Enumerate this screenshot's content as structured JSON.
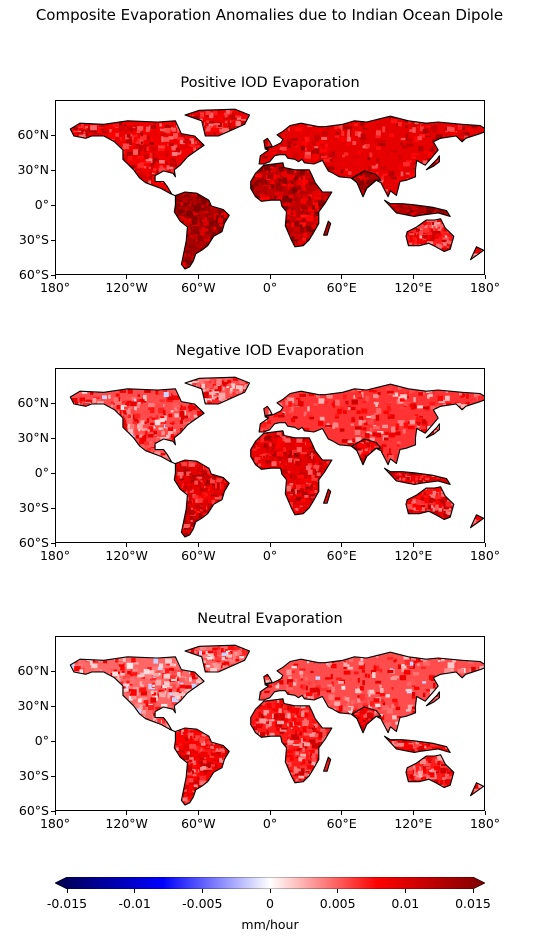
{
  "figure": {
    "suptitle": "Composite Evaporation Anomalies due to Indian Ocean Dipole"
  },
  "chart_data": [
    {
      "type": "heatmap",
      "title": "Positive IOD Evaporation",
      "x_ticks": [
        "180°",
        "120°W",
        "60°W",
        "0°",
        "60°E",
        "120°E",
        "180°"
      ],
      "x_values": [
        -180,
        -120,
        -60,
        0,
        60,
        120,
        180
      ],
      "y_ticks": [
        "60°N",
        "30°N",
        "0°",
        "30°S",
        "60°S"
      ],
      "y_values": [
        60,
        30,
        0,
        -30,
        -60
      ],
      "xlim": [
        -180,
        180
      ],
      "ylim": [
        -60,
        90
      ],
      "intensity": {
        "north_america": 0.55,
        "south_america": 0.85,
        "africa": 0.75,
        "europe_asia": 0.6,
        "south_asia": 0.8,
        "australia": 0.45
      }
    },
    {
      "type": "heatmap",
      "title": "Negative IOD Evaporation",
      "x_ticks": [
        "180°",
        "120°W",
        "60°W",
        "0°",
        "60°E",
        "120°E",
        "180°"
      ],
      "x_values": [
        -180,
        -120,
        -60,
        0,
        60,
        120,
        180
      ],
      "y_ticks": [
        "60°N",
        "30°N",
        "0°",
        "30°S",
        "60°S"
      ],
      "y_values": [
        60,
        30,
        0,
        -30,
        -60
      ],
      "xlim": [
        -180,
        180
      ],
      "ylim": [
        -60,
        90
      ],
      "intensity": {
        "north_america": 0.35,
        "south_america": 0.6,
        "africa": 0.6,
        "europe_asia": 0.4,
        "south_asia": 0.55,
        "australia": 0.5
      }
    },
    {
      "type": "heatmap",
      "title": "Neutral Evaporation",
      "x_ticks": [
        "180°",
        "120°W",
        "60°W",
        "0°",
        "60°E",
        "120°E",
        "180°"
      ],
      "x_values": [
        -180,
        -120,
        -60,
        0,
        60,
        120,
        180
      ],
      "y_ticks": [
        "60°N",
        "30°N",
        "0°",
        "30°S",
        "60°S"
      ],
      "y_values": [
        60,
        30,
        0,
        -30,
        -60
      ],
      "xlim": [
        -180,
        180
      ],
      "ylim": [
        -60,
        90
      ],
      "intensity": {
        "north_america": 0.3,
        "south_america": 0.5,
        "africa": 0.45,
        "europe_asia": 0.35,
        "south_asia": 0.5,
        "australia": 0.45
      }
    }
  ],
  "colorbar": {
    "colormap": "seismic",
    "vmin": -0.015,
    "vmax": 0.015,
    "tick_values": [
      -0.015,
      -0.01,
      -0.005,
      0,
      0.005,
      0.01,
      0.015
    ],
    "tick_labels": [
      "-0.015",
      "-0.01",
      "-0.005",
      "0",
      "0.005",
      "0.01",
      "0.015"
    ],
    "label": "mm/hour",
    "extend": "both",
    "colors": {
      "low": "#00004c",
      "mid_low": "#0000ff",
      "center": "#ffffff",
      "mid_high": "#ff0000",
      "high": "#800000"
    }
  }
}
